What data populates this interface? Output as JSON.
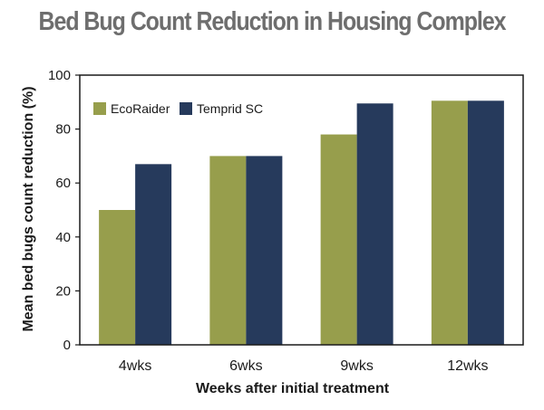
{
  "chart_data": {
    "type": "bar",
    "title": "Bed Bug Count Reduction in Housing Complex",
    "xlabel": "Weeks after initial treatment",
    "ylabel": "Mean bed bugs count reduction (%)",
    "categories": [
      "4wks",
      "6wks",
      "9wks",
      "12wks"
    ],
    "ylim": [
      0,
      100
    ],
    "yticks": [
      0,
      20,
      40,
      60,
      80,
      100
    ],
    "grid": false,
    "legend_position": "top-left",
    "series": [
      {
        "name": "EcoRaider",
        "color": "#979e4c",
        "values": [
          50,
          70,
          78,
          90.5
        ]
      },
      {
        "name": "Temprid SC",
        "color": "#263a5c",
        "values": [
          67,
          70,
          89.5,
          90.5
        ]
      }
    ]
  }
}
